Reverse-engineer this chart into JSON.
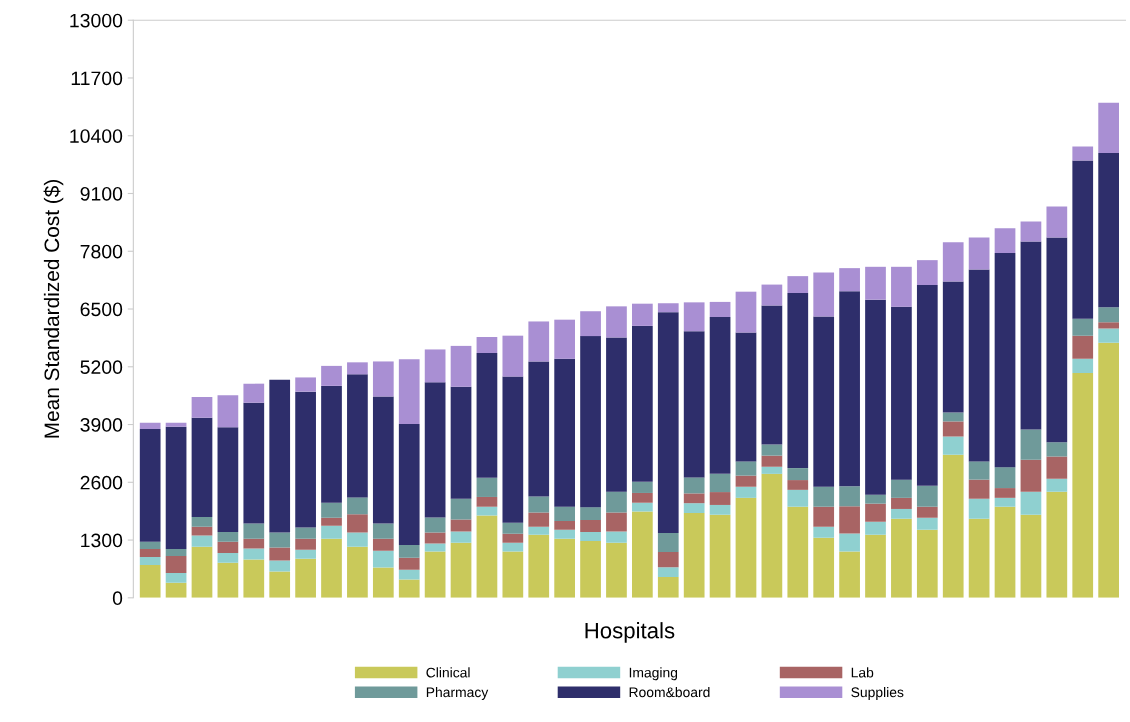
{
  "chart_data": {
    "type": "bar",
    "stacked": true,
    "xlabel": "Hospitals",
    "ylabel": "Mean Standardized Cost ($)",
    "categories": [
      null,
      null,
      null,
      null,
      null,
      null,
      null,
      null,
      null,
      null,
      null,
      null,
      null,
      null,
      null,
      null,
      null,
      null,
      null,
      null,
      null,
      null,
      null,
      null,
      null,
      null,
      null,
      null,
      null,
      null,
      null,
      null,
      null,
      null,
      null,
      null,
      null,
      null
    ],
    "series": [
      {
        "name": "Clinical",
        "color": "#c9c95a",
        "values": [
          740,
          340,
          1150,
          790,
          860,
          590,
          880,
          1330,
          1150,
          680,
          410,
          1040,
          1240,
          1850,
          1040,
          1420,
          1330,
          1280,
          1240,
          1940,
          470,
          1910,
          1870,
          2250,
          2790,
          2050,
          1350,
          1040,
          1420,
          1780,
          1530,
          3220,
          1780,
          2050,
          1870,
          2390,
          5060,
          5740
        ]
      },
      {
        "name": "Imaging",
        "color": "#8fd0d0",
        "values": [
          180,
          220,
          250,
          220,
          250,
          250,
          200,
          290,
          320,
          380,
          220,
          180,
          250,
          200,
          200,
          180,
          200,
          200,
          250,
          200,
          220,
          220,
          220,
          250,
          160,
          380,
          250,
          410,
          290,
          220,
          270,
          410,
          450,
          200,
          520,
          290,
          320,
          320
        ]
      },
      {
        "name": "Lab",
        "color": "#a86464",
        "values": [
          180,
          380,
          200,
          250,
          220,
          290,
          250,
          180,
          410,
          270,
          270,
          250,
          270,
          220,
          200,
          320,
          200,
          270,
          430,
          220,
          340,
          220,
          290,
          250,
          250,
          220,
          450,
          610,
          410,
          250,
          250,
          340,
          430,
          220,
          720,
          500,
          520,
          140
        ]
      },
      {
        "name": "Pharmacy",
        "color": "#6f9a9a",
        "values": [
          160,
          160,
          220,
          220,
          340,
          340,
          250,
          340,
          380,
          340,
          290,
          340,
          470,
          430,
          250,
          360,
          320,
          290,
          470,
          250,
          430,
          360,
          410,
          320,
          250,
          270,
          450,
          450,
          200,
          410,
          470,
          200,
          410,
          470,
          680,
          320,
          380,
          340
        ]
      },
      {
        "name": "Room&board",
        "color": "#2e2e6b",
        "values": [
          2540,
          2750,
          2230,
          2360,
          2720,
          3440,
          3060,
          2630,
          2770,
          2860,
          2720,
          3040,
          2520,
          2810,
          3290,
          3040,
          3330,
          3850,
          3470,
          3510,
          4970,
          3290,
          3530,
          2900,
          3130,
          3940,
          3830,
          4390,
          4390,
          3890,
          4520,
          2950,
          4320,
          4820,
          4230,
          4610,
          3560,
          3470
        ]
      },
      {
        "name": "Supplies",
        "color": "#a98fd3",
        "values": [
          140,
          90,
          470,
          720,
          430,
          0,
          320,
          450,
          270,
          790,
          1460,
          740,
          920,
          360,
          920,
          900,
          880,
          560,
          700,
          500,
          200,
          650,
          340,
          920,
          470,
          380,
          990,
          520,
          740,
          900,
          560,
          880,
          720,
          560,
          450,
          700,
          320,
          1130
        ]
      }
    ],
    "ylim": [
      0,
      13000
    ],
    "yticks": [
      0,
      1300,
      2600,
      3900,
      5200,
      6500,
      7800,
      9100,
      10400,
      11700,
      13000
    ],
    "legend": "bottom",
    "grid": false
  }
}
